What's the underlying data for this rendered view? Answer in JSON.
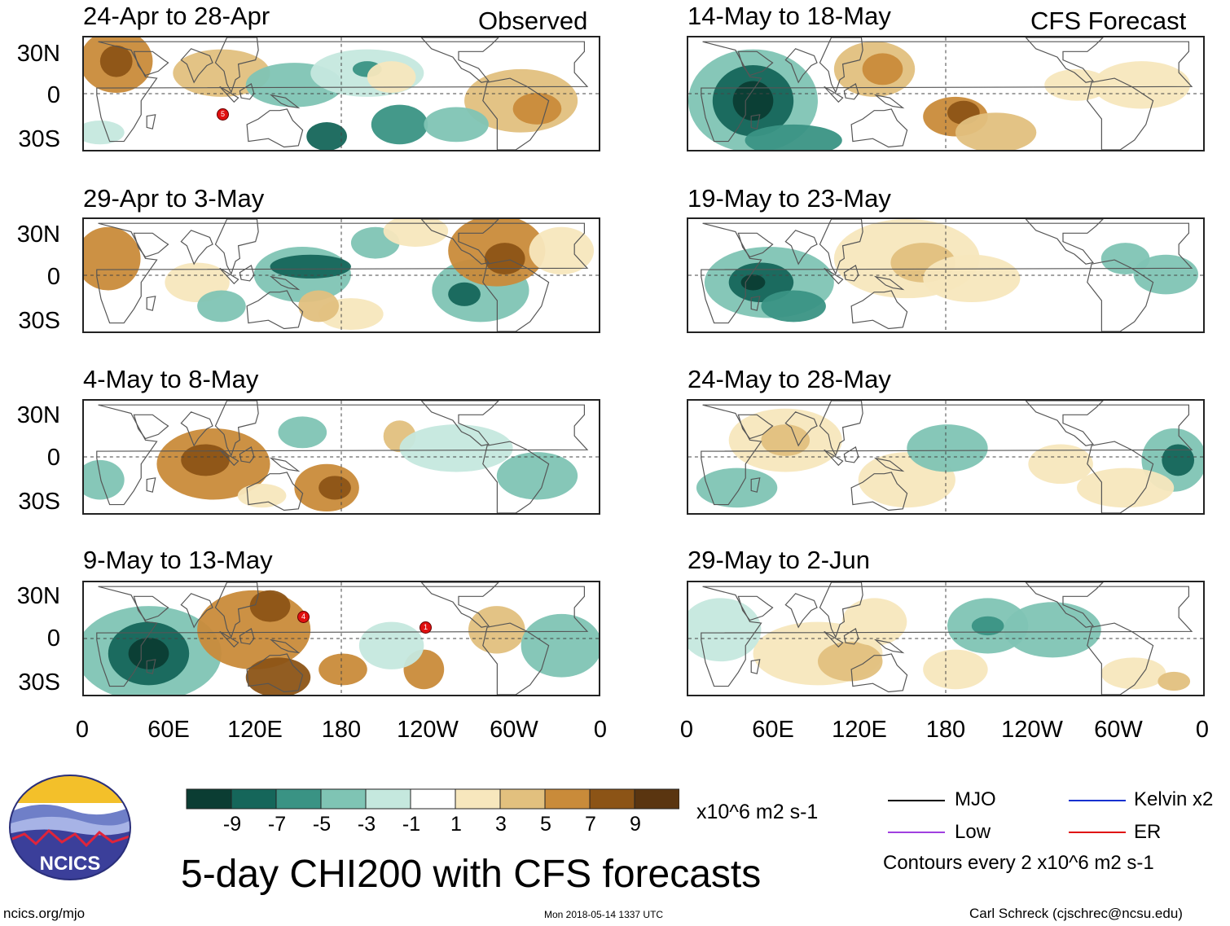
{
  "source_labels": {
    "observed": "Observed",
    "forecast": "CFS Forecast"
  },
  "panels": [
    {
      "label": "24-Apr to 28-Apr"
    },
    {
      "label": "29-Apr to 3-May"
    },
    {
      "label": "4-May to 8-May"
    },
    {
      "label": "9-May to 13-May"
    },
    {
      "label": "14-May to 18-May"
    },
    {
      "label": "19-May to 23-May"
    },
    {
      "label": "24-May to 28-May"
    },
    {
      "label": "29-May to 2-Jun"
    }
  ],
  "axes": {
    "lat_labels": [
      "30N",
      "0",
      "30S"
    ],
    "lon_labels": [
      "0",
      "60E",
      "120E",
      "180",
      "120W",
      "60W",
      "0"
    ]
  },
  "colorbar": {
    "labels": [
      "-9",
      "-7",
      "-5",
      "-3",
      "-1",
      "1",
      "3",
      "5",
      "7",
      "9"
    ],
    "colors": [
      "#0b3d33",
      "#15665a",
      "#3a9384",
      "#7fc4b4",
      "#c5e8de",
      "#ffffff",
      "#f7e7bd",
      "#e2c07e",
      "#c98b3a",
      "#8c5416",
      "#5a3510"
    ],
    "units": "x10^6 m2 s-1"
  },
  "legend": {
    "mjo": "MJO",
    "low": "Low",
    "kelvin": "Kelvin x2",
    "er": "ER",
    "contours": "Contours every 2 x10^6 m2 s-1",
    "colors": {
      "mjo": "#000000",
      "low": "#a040e0",
      "kelvin": "#1030d0",
      "er": "#e01010"
    }
  },
  "title": "5-day CHI200 with CFS forecasts",
  "logo_text": "NCICS",
  "footer": {
    "url": "ncics.org/mjo",
    "timestamp": "Mon 2018-05-14 1337 UTC",
    "author": "Carl Schreck (cjschrec@ncsu.edu)"
  },
  "storm_markers": [
    "5",
    "4",
    "1"
  ]
}
